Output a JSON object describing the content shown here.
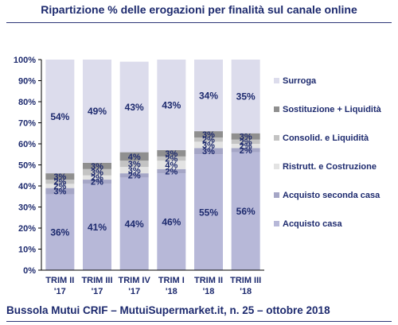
{
  "title": "Ripartizione % delle erogazioni per finalità sul canale online",
  "footer": "Bussola Mutui CRIF – MutuiSupermarket.it, n. 25 – ottobre 2018",
  "chart_data": {
    "type": "bar",
    "stacked": true,
    "title": "Ripartizione % delle erogazioni per finalità sul canale online",
    "ylim": [
      0,
      100
    ],
    "y_ticks": [
      "0%",
      "10%",
      "20%",
      "30%",
      "40%",
      "50%",
      "60%",
      "70%",
      "80%",
      "90%",
      "100%"
    ],
    "grid": false,
    "legend_position": "right",
    "categories": [
      [
        "TRIM II",
        "'17"
      ],
      [
        "TRIM III",
        "'17"
      ],
      [
        "TRIM IV",
        "'17"
      ],
      [
        "TRIM I",
        "'18"
      ],
      [
        "TRIM II",
        "'18"
      ],
      [
        "TRIM III",
        "'18"
      ]
    ],
    "series": [
      {
        "name": "Acquisto casa",
        "color": "#b7b8d8",
        "values": [
          36,
          41,
          44,
          46,
          55,
          56
        ],
        "labels": [
          "36%",
          "41%",
          "44%",
          "46%",
          "55%",
          "56%"
        ]
      },
      {
        "name": "Acquisto seconda casa",
        "color": "#a5a6c6",
        "values": [
          3,
          2,
          2,
          2,
          3,
          2
        ],
        "labels": [
          "3%",
          "2%",
          "2%",
          "2%",
          "3%",
          "2%"
        ]
      },
      {
        "name": "Ristrutt. e Costruzione",
        "color": "#e3e3e3",
        "values": [
          2,
          2,
          3,
          4,
          3,
          2
        ],
        "labels": [
          "2%",
          "2%",
          "3%",
          "4%",
          "3%",
          "2%"
        ]
      },
      {
        "name": "Consolid. e Liquidità",
        "color": "#c3c3c3",
        "values": [
          2,
          3,
          3,
          2,
          2,
          2
        ],
        "labels": [
          "2%",
          "3%",
          "3%",
          "2%",
          "2%",
          "2%"
        ]
      },
      {
        "name": "Sostituzione + Liquidità",
        "color": "#8f8f8f",
        "values": [
          3,
          3,
          4,
          3,
          3,
          3
        ],
        "labels": [
          "3%",
          "3%",
          "4%",
          "3%",
          "3%",
          "3%"
        ]
      },
      {
        "name": "Surroga",
        "color": "#dcdcec",
        "values": [
          54,
          49,
          43,
          43,
          34,
          35
        ],
        "labels": [
          "54%",
          "49%",
          "43%",
          "43%",
          "34%",
          "35%"
        ]
      }
    ]
  }
}
